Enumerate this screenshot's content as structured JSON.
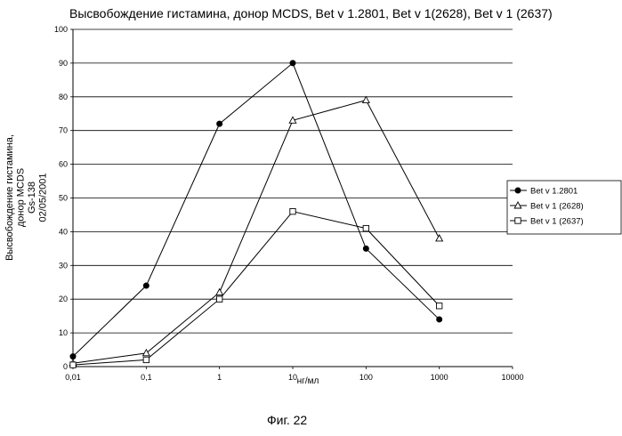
{
  "chart_data": {
    "type": "line",
    "title": "Высвобождение гистамина, донор MCDS, Bet v 1.2801, Bet v 1(2628), Bet v 1 (2637)",
    "ylabel_lines": [
      "Высвобождение гистамина,",
      "донор MCDS",
      "Gs-138",
      "02/05/2001"
    ],
    "xlabel": "нг/мл",
    "x_scale": "log",
    "x_ticks": [
      0.01,
      0.1,
      1,
      10,
      100,
      1000,
      10000
    ],
    "x_tick_labels": [
      "0,01",
      "0,1",
      "1",
      "10",
      "100",
      "1000",
      "10000"
    ],
    "ylim": [
      0,
      100
    ],
    "y_ticks": [
      0,
      10,
      20,
      30,
      40,
      50,
      60,
      70,
      80,
      90,
      100
    ],
    "grid": "horizontal",
    "legend_position": "right",
    "series": [
      {
        "name": "Bet v 1.2801",
        "marker": "filled-circle",
        "x": [
          0.01,
          0.1,
          1,
          10,
          100,
          1000
        ],
        "y": [
          3,
          24,
          72,
          90,
          35,
          14
        ]
      },
      {
        "name": "Bet v 1 (2628)",
        "marker": "open-triangle",
        "x": [
          0.01,
          0.1,
          1,
          10,
          100,
          1000
        ],
        "y": [
          1,
          4,
          22,
          73,
          79,
          38
        ]
      },
      {
        "name": "Bet v 1 (2637)",
        "marker": "open-square",
        "x": [
          0.01,
          0.1,
          1,
          10,
          100,
          1000
        ],
        "y": [
          0.5,
          2,
          20,
          46,
          41,
          18
        ]
      }
    ]
  },
  "caption": "Фиг. 22"
}
